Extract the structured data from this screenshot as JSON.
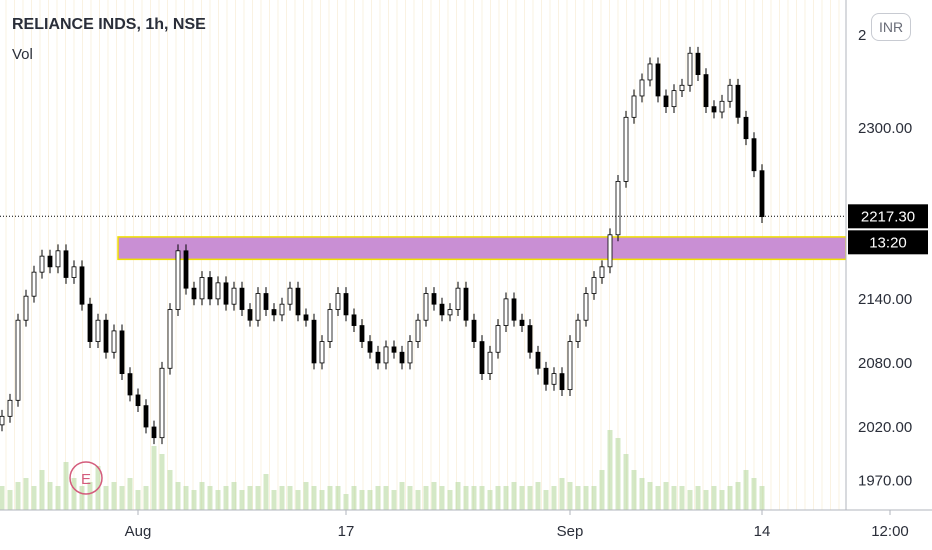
{
  "header": {
    "symbol_title": "RELIANCE INDS, 1h, NSE",
    "volume_label": "Vol",
    "currency_button": "INR",
    "event_badge": "E"
  },
  "colors": {
    "up_candle": "#ffffff",
    "down_candle": "#000000",
    "zone_fill": "#c98fd4",
    "zone_border": "#f0e000",
    "volume": "#b8d8a0",
    "grid": "#f0d8a8",
    "price_label_bg": "#000000",
    "event_badge": "#d45c7c"
  },
  "chart_data": {
    "type": "candlestick",
    "symbol": "RELIANCE INDS",
    "interval": "1h",
    "exchange": "NSE",
    "currency": "INR",
    "ylim": [
      1950,
      2430
    ],
    "y_ticks": [
      "2300.00",
      "2140.00",
      "2080.00",
      "2020.00",
      "1970.00"
    ],
    "y_tick_values": [
      2300,
      2140,
      2080,
      2020,
      1970
    ],
    "top_tick_partial": "2",
    "x_ticks": [
      "Aug",
      "17",
      "Sep",
      "14",
      "12:00"
    ],
    "x_tick_bar_index": [
      17,
      43,
      71,
      95,
      111
    ],
    "last_price": "2217.30",
    "last_price_value": 2217.3,
    "countdown": "13:20",
    "zone": {
      "low": 2177,
      "high": 2198,
      "start_bar": 15,
      "end": "right-edge"
    },
    "close_path": [
      [
        0,
        2030
      ],
      [
        1,
        2045
      ],
      [
        2,
        2120
      ],
      [
        4,
        2165
      ],
      [
        5,
        2180
      ],
      [
        6,
        2170
      ],
      [
        7,
        2185
      ],
      [
        8,
        2160
      ],
      [
        9,
        2170
      ],
      [
        10,
        2135
      ],
      [
        11,
        2100
      ],
      [
        12,
        2120
      ],
      [
        13,
        2090
      ],
      [
        14,
        2110
      ],
      [
        15,
        2070
      ],
      [
        16,
        2050
      ],
      [
        17,
        2040
      ],
      [
        18,
        2020
      ],
      [
        19,
        2010
      ],
      [
        20,
        2075
      ],
      [
        21,
        2130
      ],
      [
        22,
        2185
      ],
      [
        23,
        2150
      ],
      [
        24,
        2140
      ],
      [
        25,
        2160
      ],
      [
        26,
        2140
      ],
      [
        27,
        2155
      ],
      [
        28,
        2135
      ],
      [
        29,
        2150
      ],
      [
        30,
        2130
      ],
      [
        31,
        2120
      ],
      [
        32,
        2145
      ],
      [
        33,
        2130
      ],
      [
        34,
        2125
      ],
      [
        35,
        2135
      ],
      [
        36,
        2150
      ],
      [
        37,
        2125
      ],
      [
        38,
        2120
      ],
      [
        39,
        2080
      ],
      [
        40,
        2100
      ],
      [
        41,
        2130
      ],
      [
        42,
        2145
      ],
      [
        43,
        2125
      ],
      [
        44,
        2115
      ],
      [
        45,
        2100
      ],
      [
        46,
        2090
      ],
      [
        47,
        2080
      ],
      [
        48,
        2095
      ],
      [
        49,
        2090
      ],
      [
        50,
        2080
      ],
      [
        51,
        2100
      ],
      [
        52,
        2120
      ],
      [
        53,
        2145
      ],
      [
        54,
        2135
      ],
      [
        55,
        2125
      ],
      [
        56,
        2130
      ],
      [
        57,
        2150
      ],
      [
        58,
        2120
      ],
      [
        59,
        2100
      ],
      [
        60,
        2070
      ],
      [
        61,
        2090
      ],
      [
        62,
        2115
      ],
      [
        63,
        2140
      ],
      [
        64,
        2120
      ],
      [
        65,
        2115
      ],
      [
        66,
        2090
      ],
      [
        67,
        2075
      ],
      [
        68,
        2060
      ],
      [
        69,
        2070
      ],
      [
        70,
        2055
      ],
      [
        71,
        2100
      ],
      [
        72,
        2120
      ],
      [
        73,
        2145
      ],
      [
        74,
        2160
      ],
      [
        75,
        2170
      ],
      [
        76,
        2200
      ],
      [
        77,
        2250
      ],
      [
        78,
        2310
      ],
      [
        79,
        2330
      ],
      [
        80,
        2345
      ],
      [
        81,
        2360
      ],
      [
        82,
        2330
      ],
      [
        83,
        2320
      ],
      [
        84,
        2335
      ],
      [
        85,
        2340
      ],
      [
        86,
        2370
      ],
      [
        87,
        2350
      ],
      [
        88,
        2320
      ],
      [
        89,
        2315
      ],
      [
        90,
        2325
      ],
      [
        91,
        2340
      ],
      [
        92,
        2310
      ],
      [
        93,
        2290
      ],
      [
        94,
        2260
      ],
      [
        95,
        2217
      ]
    ],
    "volume_relative": [
      0.3,
      0.25,
      0.35,
      0.4,
      0.3,
      0.5,
      0.35,
      0.3,
      0.6,
      0.4,
      0.3,
      0.35,
      0.55,
      0.3,
      0.35,
      0.3,
      0.4,
      0.25,
      0.3,
      0.8,
      0.7,
      0.5,
      0.35,
      0.3,
      0.25,
      0.35,
      0.3,
      0.25,
      0.3,
      0.35,
      0.25,
      0.3,
      0.3,
      0.45,
      0.25,
      0.3,
      0.3,
      0.25,
      0.35,
      0.3,
      0.25,
      0.3,
      0.3,
      0.2,
      0.3,
      0.25,
      0.25,
      0.3,
      0.3,
      0.25,
      0.35,
      0.3,
      0.25,
      0.3,
      0.35,
      0.3,
      0.25,
      0.35,
      0.3,
      0.3,
      0.3,
      0.25,
      0.3,
      0.3,
      0.35,
      0.3,
      0.3,
      0.35,
      0.25,
      0.3,
      0.4,
      0.35,
      0.3,
      0.3,
      0.3,
      0.5,
      1.0,
      0.9,
      0.7,
      0.5,
      0.4,
      0.35,
      0.3,
      0.35,
      0.3,
      0.3,
      0.25,
      0.3,
      0.25,
      0.3,
      0.25,
      0.3,
      0.35,
      0.5,
      0.4,
      0.3
    ],
    "grid": true
  }
}
